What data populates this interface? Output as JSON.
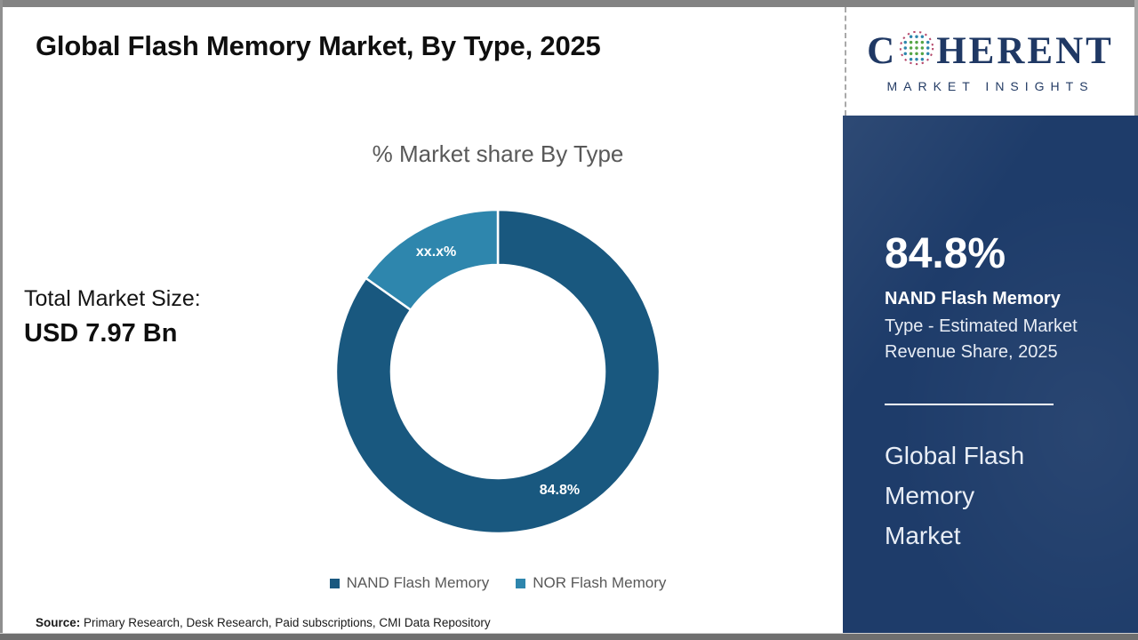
{
  "page": {
    "title": "Global Flash Memory Market, By Type, 2025",
    "source_label": "Source:",
    "source_text": " Primary Research, Desk Research, Paid subscriptions, CMI Data Repository"
  },
  "logo": {
    "word_start": "C",
    "word_end": "HERENT",
    "subtitle": "MARKET INSIGHTS",
    "navy_color": "#1f3864"
  },
  "left_stat": {
    "label": "Total Market Size:",
    "value": "USD 7.97 Bn"
  },
  "chart_data": {
    "type": "pie",
    "donut": true,
    "title": "% Market share By Type",
    "categories": [
      "NAND Flash Memory",
      "NOR Flash Memory"
    ],
    "values": [
      84.8,
      15.2
    ],
    "slice_labels": [
      "84.8%",
      "xx.x%"
    ],
    "colors": [
      "#19587f",
      "#2e86ad"
    ],
    "start_angle_deg": 0,
    "direction": "clockwise",
    "legend_position": "bottom",
    "outer_radius": 182,
    "inner_radius": 120
  },
  "side_panel": {
    "bg_color": "#1e3c6a",
    "stat_value": "84.8%",
    "stat_label_bold": "NAND Flash Memory",
    "stat_label_rest": "Type - Estimated Market Revenue Share, 2025",
    "panel_title": "Global Flash Memory Market"
  }
}
